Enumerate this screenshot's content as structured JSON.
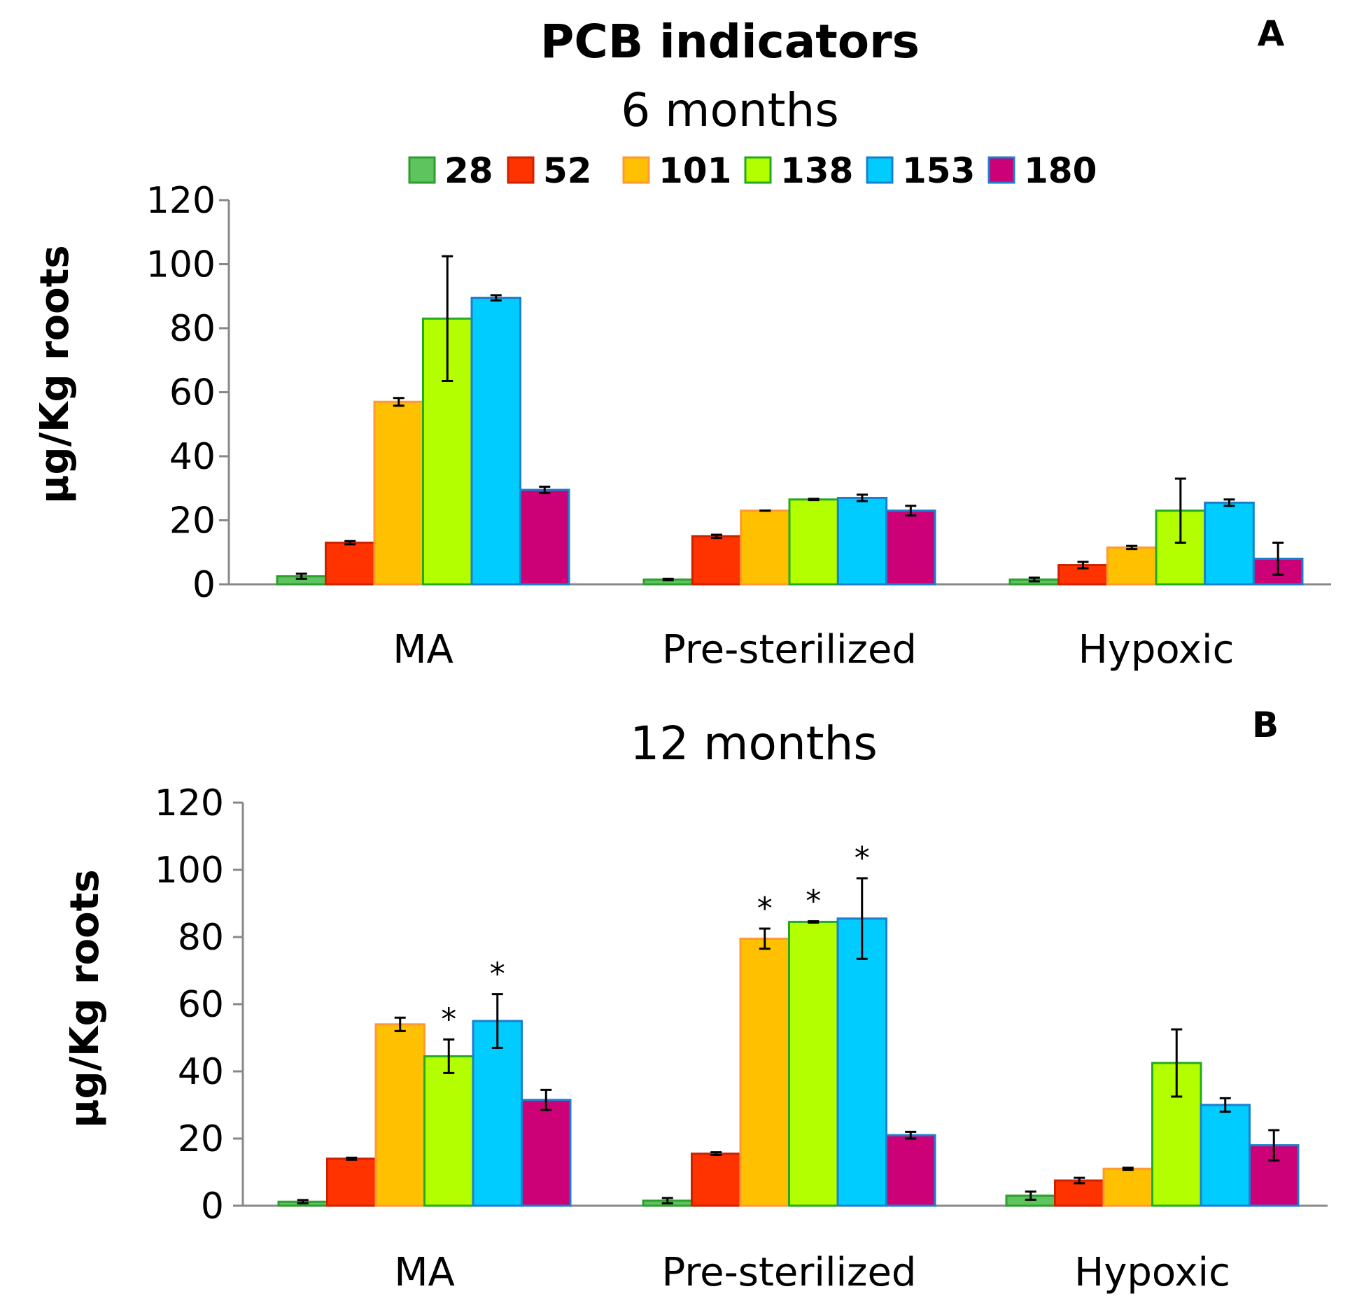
{
  "chart_data": [
    {
      "type": "bar",
      "panel": "A",
      "title": "PCB indicators",
      "subtitle": "6 months",
      "xlabel": "",
      "ylabel": "µg/Kg roots",
      "ylim": [
        0,
        120
      ],
      "yticks": [
        0,
        20,
        40,
        60,
        80,
        100,
        120
      ],
      "categories": [
        "MA",
        "Pre-sterilized",
        "Hypoxic"
      ],
      "legend": {
        "placement": "top",
        "entries": [
          "28",
          "52",
          "101",
          "138",
          "153",
          "180"
        ]
      },
      "series": [
        {
          "name": "28",
          "color": "#5ec45e",
          "edge": "#2e9e2e",
          "values": [
            2.5,
            1.5,
            1.5
          ],
          "errors": [
            0.8,
            0.2,
            0.6
          ],
          "stars": [
            false,
            false,
            false
          ]
        },
        {
          "name": "52",
          "color": "#ff3300",
          "edge": "#cc2200",
          "values": [
            13,
            15,
            6
          ],
          "errors": [
            0.5,
            0.5,
            1.0
          ],
          "stars": [
            false,
            false,
            false
          ]
        },
        {
          "name": "101",
          "color": "#ffc000",
          "edge": "#ff9933",
          "values": [
            57,
            23,
            11.5
          ],
          "errors": [
            1.2,
            0.0,
            0.5
          ],
          "stars": [
            false,
            false,
            false
          ]
        },
        {
          "name": "138",
          "color": "#b3ff00",
          "edge": "#22aa22",
          "values": [
            83,
            26.5,
            23
          ],
          "errors": [
            19.5,
            0.2,
            10
          ],
          "stars": [
            false,
            false,
            false
          ]
        },
        {
          "name": "153",
          "color": "#00ccff",
          "edge": "#1a80cc",
          "values": [
            89.5,
            27,
            25.5
          ],
          "errors": [
            0.8,
            1.0,
            1.0
          ],
          "stars": [
            false,
            false,
            false
          ]
        },
        {
          "name": "180",
          "color": "#cc0077",
          "edge": "#1a80cc",
          "values": [
            29.5,
            23,
            8
          ],
          "errors": [
            1.0,
            1.5,
            5.0
          ],
          "stars": [
            false,
            false,
            false
          ]
        }
      ]
    },
    {
      "type": "bar",
      "panel": "B",
      "title": "",
      "subtitle": "12 months",
      "xlabel": "",
      "ylabel": "µg/Kg roots",
      "ylim": [
        0,
        120
      ],
      "yticks": [
        0,
        20,
        40,
        60,
        80,
        100,
        120
      ],
      "categories": [
        "MA",
        "Pre-sterilized",
        "Hypoxic"
      ],
      "star_symbol": "*",
      "series": [
        {
          "name": "28",
          "color": "#5ec45e",
          "edge": "#2e9e2e",
          "values": [
            1.2,
            1.5,
            3
          ],
          "errors": [
            0.5,
            0.8,
            1.2
          ],
          "stars": [
            false,
            false,
            false
          ]
        },
        {
          "name": "52",
          "color": "#ff3300",
          "edge": "#cc2200",
          "values": [
            14,
            15.5,
            7.5
          ],
          "errors": [
            0.3,
            0.4,
            0.8
          ],
          "stars": [
            false,
            false,
            false
          ]
        },
        {
          "name": "101",
          "color": "#ffc000",
          "edge": "#ff9933",
          "values": [
            54,
            79.5,
            11
          ],
          "errors": [
            2.0,
            3.0,
            0.3
          ],
          "stars": [
            false,
            true,
            false
          ]
        },
        {
          "name": "138",
          "color": "#b3ff00",
          "edge": "#22aa22",
          "values": [
            44.5,
            84.5,
            42.5
          ],
          "errors": [
            5.0,
            0.2,
            10
          ],
          "stars": [
            true,
            true,
            false
          ]
        },
        {
          "name": "153",
          "color": "#00ccff",
          "edge": "#1a80cc",
          "values": [
            55,
            85.5,
            30
          ],
          "errors": [
            8.0,
            12,
            2.0
          ],
          "stars": [
            true,
            true,
            false
          ]
        },
        {
          "name": "180",
          "color": "#cc0077",
          "edge": "#1a80cc",
          "values": [
            31.5,
            21,
            18
          ],
          "errors": [
            3.0,
            1.0,
            4.5
          ],
          "stars": [
            false,
            false,
            false
          ]
        }
      ]
    }
  ]
}
